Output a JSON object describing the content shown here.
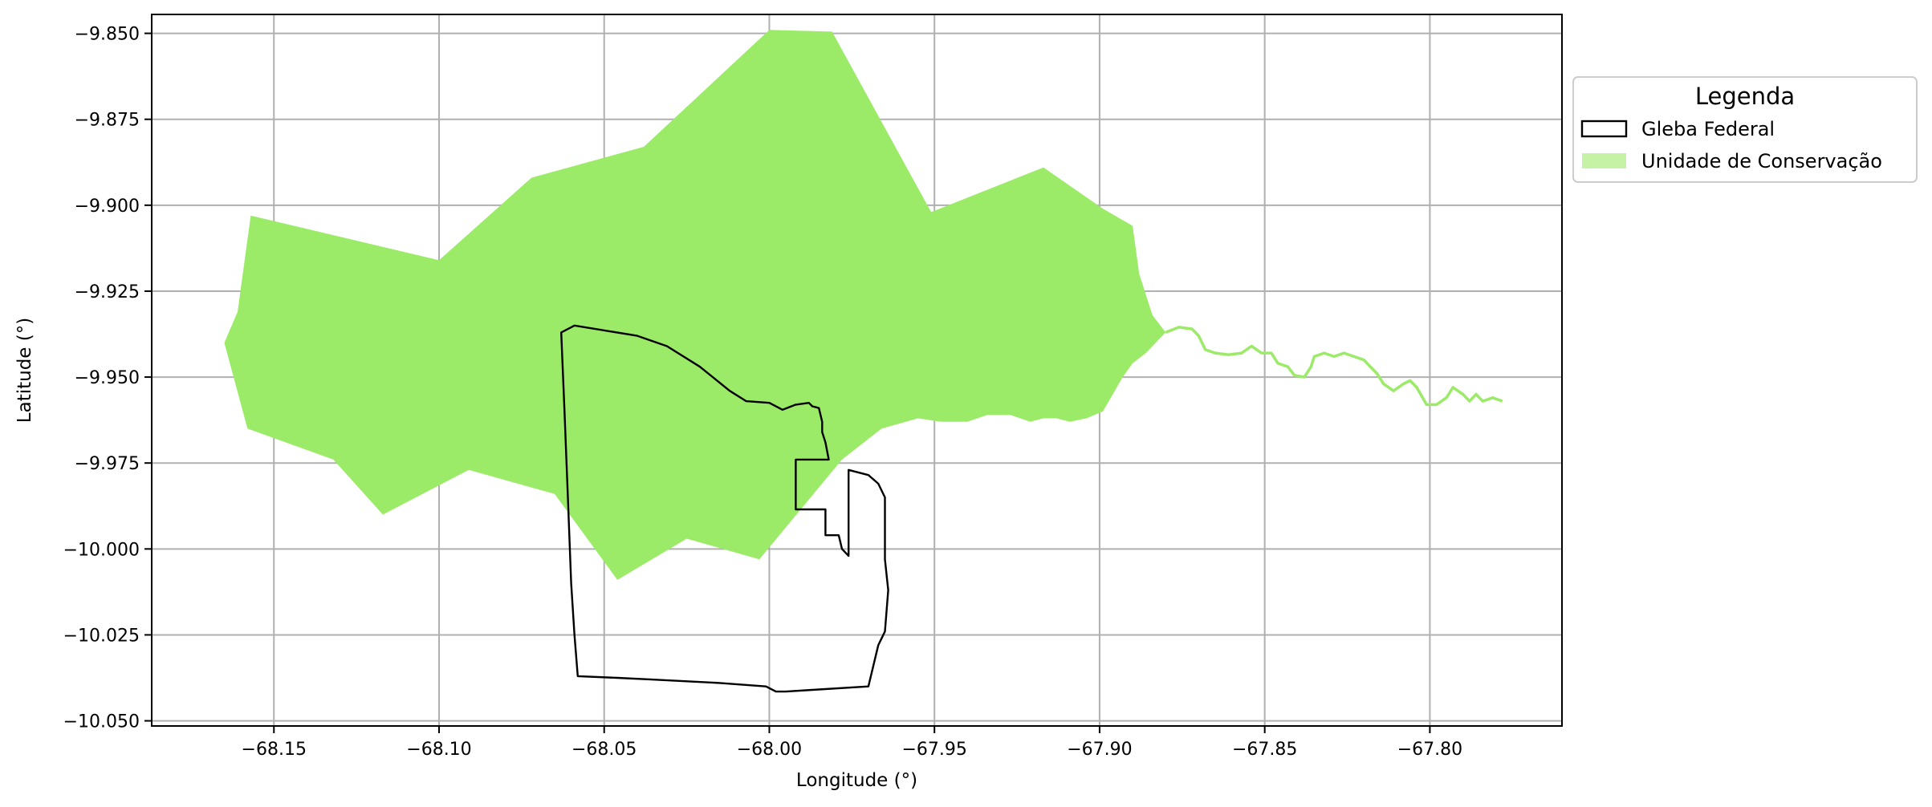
{
  "chart_data": {
    "type": "map",
    "xlabel": "Longitude (°)",
    "ylabel": "Latitude (°)",
    "xlim": [
      -68.187,
      -67.76
    ],
    "ylim": [
      -10.0515,
      -9.8445
    ],
    "xticks": [
      {
        "value": -68.15,
        "label": "−68.15"
      },
      {
        "value": -68.1,
        "label": "−68.10"
      },
      {
        "value": -68.05,
        "label": "−68.05"
      },
      {
        "value": -68.0,
        "label": "−68.00"
      },
      {
        "value": -67.95,
        "label": "−67.95"
      },
      {
        "value": -67.9,
        "label": "−67.90"
      },
      {
        "value": -67.85,
        "label": "−67.85"
      },
      {
        "value": -67.8,
        "label": "−67.80"
      }
    ],
    "yticks": [
      {
        "value": -9.85,
        "label": "−9.850"
      },
      {
        "value": -9.875,
        "label": "−9.875"
      },
      {
        "value": -9.9,
        "label": "−9.900"
      },
      {
        "value": -9.925,
        "label": "−9.925"
      },
      {
        "value": -9.95,
        "label": "−9.950"
      },
      {
        "value": -9.975,
        "label": "−9.975"
      },
      {
        "value": -10.0,
        "label": "−10.000"
      },
      {
        "value": -10.025,
        "label": "−10.025"
      },
      {
        "value": -10.05,
        "label": "−10.050"
      }
    ],
    "grid": true,
    "colors": {
      "conservation_fill": "#9beb68",
      "conservation_legend": "#c5f2a4",
      "gleba_stroke": "#000000",
      "grid": "#b0b0b0"
    },
    "legend": {
      "title": "Legenda",
      "placement": "outside-upper-right",
      "entries": [
        {
          "label": "Gleba Federal",
          "style": "outline"
        },
        {
          "label": "Unidade de Conservação",
          "style": "fill"
        }
      ]
    },
    "layers": {
      "conservation_polygon": [
        [
          -68.165,
          -9.94
        ],
        [
          -68.161,
          -9.931
        ],
        [
          -68.157,
          -9.903
        ],
        [
          -68.1,
          -9.916
        ],
        [
          -68.072,
          -9.892
        ],
        [
          -68.038,
          -9.883
        ],
        [
          -68.0,
          -9.849
        ],
        [
          -67.981,
          -9.8495
        ],
        [
          -67.951,
          -9.902
        ],
        [
          -67.917,
          -9.889
        ],
        [
          -67.899,
          -9.901
        ],
        [
          -67.89,
          -9.906
        ],
        [
          -67.888,
          -9.92
        ],
        [
          -67.884,
          -9.932
        ],
        [
          -67.88,
          -9.937
        ],
        [
          -67.886,
          -9.943
        ],
        [
          -67.89,
          -9.946
        ],
        [
          -67.893,
          -9.95
        ],
        [
          -67.896,
          -9.955
        ],
        [
          -67.899,
          -9.96
        ],
        [
          -67.904,
          -9.962
        ],
        [
          -67.909,
          -9.963
        ],
        [
          -67.913,
          -9.962
        ],
        [
          -67.917,
          -9.962
        ],
        [
          -67.921,
          -9.963
        ],
        [
          -67.927,
          -9.961
        ],
        [
          -67.934,
          -9.961
        ],
        [
          -67.94,
          -9.963
        ],
        [
          -67.948,
          -9.963
        ],
        [
          -67.955,
          -9.962
        ],
        [
          -67.966,
          -9.965
        ],
        [
          -67.978,
          -9.974
        ],
        [
          -68.003,
          -10.003
        ],
        [
          -68.025,
          -9.997
        ],
        [
          -68.046,
          -10.009
        ],
        [
          -68.065,
          -9.984
        ],
        [
          -68.091,
          -9.977
        ],
        [
          -68.117,
          -9.99
        ],
        [
          -68.132,
          -9.974
        ],
        [
          -68.158,
          -9.965
        ]
      ],
      "conservation_river": [
        [
          -67.88,
          -9.937
        ],
        [
          -67.876,
          -9.9355
        ],
        [
          -67.872,
          -9.936
        ],
        [
          -67.87,
          -9.938
        ],
        [
          -67.868,
          -9.942
        ],
        [
          -67.865,
          -9.943
        ],
        [
          -67.861,
          -9.9435
        ],
        [
          -67.857,
          -9.943
        ],
        [
          -67.854,
          -9.941
        ],
        [
          -67.851,
          -9.943
        ],
        [
          -67.848,
          -9.943
        ],
        [
          -67.846,
          -9.946
        ],
        [
          -67.843,
          -9.947
        ],
        [
          -67.841,
          -9.9495
        ],
        [
          -67.838,
          -9.95
        ],
        [
          -67.836,
          -9.947
        ],
        [
          -67.835,
          -9.944
        ],
        [
          -67.832,
          -9.943
        ],
        [
          -67.829,
          -9.944
        ],
        [
          -67.826,
          -9.943
        ],
        [
          -67.823,
          -9.944
        ],
        [
          -67.82,
          -9.945
        ],
        [
          -67.818,
          -9.947
        ],
        [
          -67.816,
          -9.949
        ],
        [
          -67.814,
          -9.952
        ],
        [
          -67.811,
          -9.954
        ],
        [
          -67.808,
          -9.952
        ],
        [
          -67.806,
          -9.951
        ],
        [
          -67.804,
          -9.953
        ],
        [
          -67.801,
          -9.958
        ],
        [
          -67.798,
          -9.958
        ],
        [
          -67.795,
          -9.956
        ],
        [
          -67.793,
          -9.953
        ],
        [
          -67.79,
          -9.955
        ],
        [
          -67.788,
          -9.957
        ],
        [
          -67.786,
          -9.955
        ],
        [
          -67.784,
          -9.957
        ],
        [
          -67.781,
          -9.956
        ],
        [
          -67.778,
          -9.957
        ]
      ],
      "gleba_outline": [
        [
          -68.063,
          -9.937
        ],
        [
          -68.059,
          -9.935
        ],
        [
          -68.04,
          -9.938
        ],
        [
          -68.031,
          -9.941
        ],
        [
          -68.021,
          -9.947
        ],
        [
          -68.012,
          -9.954
        ],
        [
          -68.007,
          -9.957
        ],
        [
          -68.0,
          -9.9575
        ],
        [
          -67.996,
          -9.9595
        ],
        [
          -67.992,
          -9.958
        ],
        [
          -67.988,
          -9.9575
        ],
        [
          -67.987,
          -9.9585
        ],
        [
          -67.985,
          -9.959
        ],
        [
          -67.984,
          -9.963
        ],
        [
          -67.984,
          -9.966
        ],
        [
          -67.983,
          -9.969
        ],
        [
          -67.982,
          -9.974
        ],
        [
          -67.992,
          -9.974
        ],
        [
          -67.992,
          -9.9885
        ],
        [
          -67.983,
          -9.9885
        ],
        [
          -67.983,
          -9.996
        ],
        [
          -67.979,
          -9.996
        ],
        [
          -67.978,
          -10.0
        ],
        [
          -67.976,
          -10.002
        ],
        [
          -67.976,
          -9.977
        ],
        [
          -67.97,
          -9.9785
        ],
        [
          -67.967,
          -9.981
        ],
        [
          -67.965,
          -9.985
        ],
        [
          -67.965,
          -9.993
        ],
        [
          -67.965,
          -10.003
        ],
        [
          -67.964,
          -10.012
        ],
        [
          -67.965,
          -10.024
        ],
        [
          -67.967,
          -10.028
        ],
        [
          -67.97,
          -10.04
        ],
        [
          -67.987,
          -10.041
        ],
        [
          -67.995,
          -10.0415
        ],
        [
          -67.998,
          -10.0415
        ],
        [
          -68.001,
          -10.04
        ],
        [
          -68.015,
          -10.039
        ],
        [
          -68.035,
          -10.038
        ],
        [
          -68.046,
          -10.0375
        ],
        [
          -68.058,
          -10.037
        ],
        [
          -68.059,
          -10.025
        ],
        [
          -68.06,
          -10.01
        ],
        [
          -68.061,
          -9.985
        ],
        [
          -68.062,
          -9.96
        ]
      ]
    }
  }
}
